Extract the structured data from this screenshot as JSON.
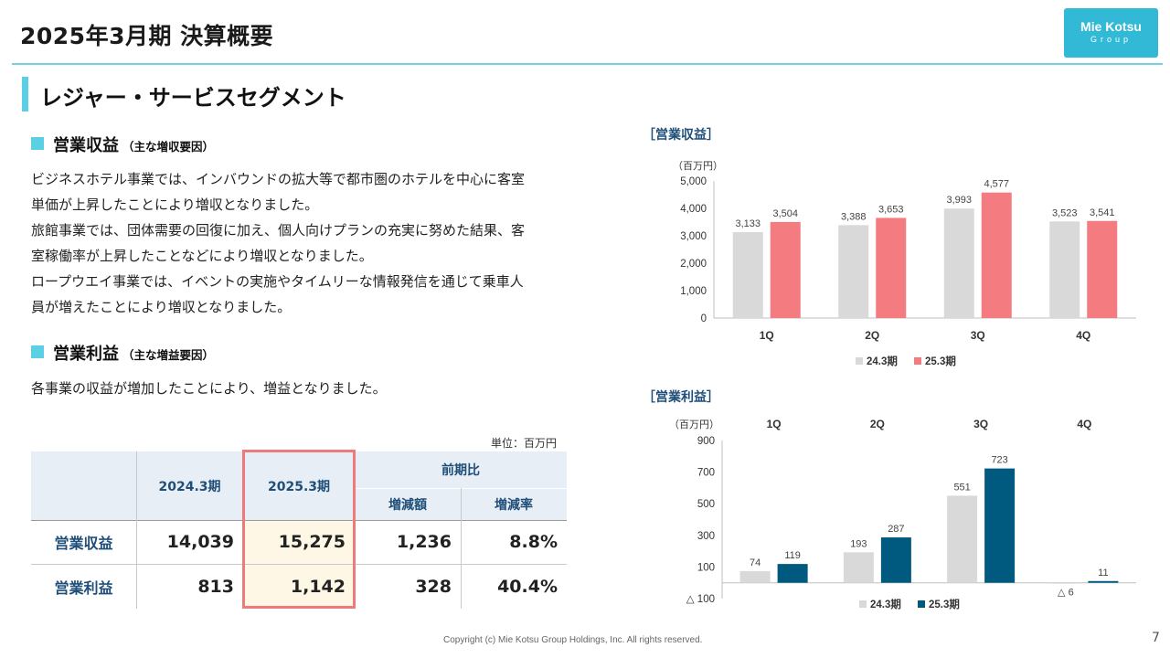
{
  "header": {
    "title": "2025年3月期 決算概要",
    "logo_main": "Mie Kotsu",
    "logo_sub": "Group"
  },
  "section": {
    "title": "レジャー・サービスセグメント"
  },
  "revenue": {
    "heading": "営業収益",
    "note": "（主な増収要因）",
    "paragraphs": [
      "ビジネスホテル事業では、インバウンドの拡大等で都市圏のホテルを中心に客室",
      "単価が上昇したことにより増収となりました。",
      "旅館事業では、団体需要の回復に加え、個人向けプランの充実に努めた結果、客",
      "室稼働率が上昇したことなどにより増収となりました。",
      "ロープウエイ事業では、イベントの実施やタイムリーな情報発信を通じて乗車人",
      "員が増えたことにより増収となりました。"
    ]
  },
  "profit": {
    "heading": "営業利益",
    "note": "（主な増益要因）",
    "paragraph": "各事業の収益が増加したことにより、増益となりました。"
  },
  "table": {
    "unit": "単位：百万円",
    "headers": {
      "prev": "2024.3期",
      "curr": "2025.3期",
      "yoy": "前期比",
      "diff": "増減額",
      "rate": "増減率"
    },
    "rows": [
      {
        "label": "営業収益",
        "prev": "14,039",
        "curr": "15,275",
        "diff": "1,236",
        "rate": "8.8%"
      },
      {
        "label": "営業利益",
        "prev": "813",
        "curr": "1,142",
        "diff": "328",
        "rate": "40.4%"
      }
    ]
  },
  "colors": {
    "accent": "#5bd0e4",
    "prev_bar": "#d9d9d9",
    "revenue_curr": "#f47c80",
    "profit_curr": "#005a80",
    "header_text": "#1f4e79",
    "highlight": "#ee7b7b"
  },
  "chart_data": [
    {
      "type": "bar",
      "title": "［営業収益］",
      "ylabel": "（百万円）",
      "categories": [
        "1Q",
        "2Q",
        "3Q",
        "4Q"
      ],
      "series": [
        {
          "name": "24.3期",
          "values": [
            3133,
            3388,
            3993,
            3523
          ],
          "labels": [
            "3,133",
            "3,388",
            "3,993",
            "3,523"
          ]
        },
        {
          "name": "25.3期",
          "values": [
            3504,
            3653,
            4577,
            3541
          ],
          "labels": [
            "3,504",
            "3,653",
            "4,577",
            "3,541"
          ]
        }
      ],
      "ylim": [
        0,
        5000
      ],
      "yticks": [
        0,
        1000,
        2000,
        3000,
        4000,
        5000
      ],
      "ytick_labels": [
        "0",
        "1,000",
        "2,000",
        "3,000",
        "4,000",
        "5,000"
      ],
      "legend": "bottom",
      "grid": false
    },
    {
      "type": "bar",
      "title": "［営業利益］",
      "ylabel": "（百万円）",
      "categories": [
        "1Q",
        "2Q",
        "3Q",
        "4Q"
      ],
      "series": [
        {
          "name": "24.3期",
          "values": [
            74,
            193,
            551,
            -6
          ],
          "labels": [
            "74",
            "193",
            "551",
            "△ 6"
          ]
        },
        {
          "name": "25.3期",
          "values": [
            119,
            287,
            723,
            11
          ],
          "labels": [
            "119",
            "287",
            "723",
            "11"
          ]
        }
      ],
      "ylim": [
        -100,
        900
      ],
      "yticks": [
        -100,
        100,
        300,
        500,
        700,
        900
      ],
      "ytick_labels": [
        "△ 100",
        "100",
        "300",
        "500",
        "700",
        "900"
      ],
      "legend": "bottom",
      "category_position": "top",
      "grid": false
    }
  ],
  "footer": {
    "copyright": "Copyright (c) Mie Kotsu Group Holdings, Inc. All rights reserved.",
    "page": "7"
  }
}
